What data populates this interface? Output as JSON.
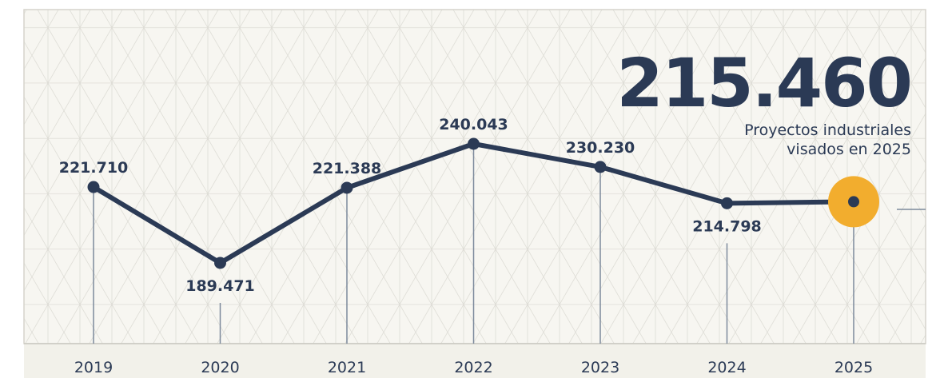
{
  "chart_data": {
    "type": "line",
    "categories": [
      "2019",
      "2020",
      "2021",
      "2022",
      "2023",
      "2024",
      "2025"
    ],
    "values": [
      221710,
      189471,
      221388,
      240043,
      230230,
      214798,
      215460
    ],
    "data_labels": [
      "221.710",
      "189.471",
      "221.388",
      "240.043",
      "230.230",
      "214.798",
      ""
    ],
    "highlight": {
      "category": "2025",
      "value_text": "215.460",
      "caption_line1": "Proyectos industriales",
      "caption_line2": "visados en 2025"
    },
    "ylim": [
      170000,
      250000
    ],
    "grid": true,
    "colors": {
      "line": "#2b3a55",
      "highlight": "#f2ad2e",
      "grid": "#dddcd5",
      "background": "#f7f6f1",
      "drop_line": "#7d8a9c"
    }
  }
}
